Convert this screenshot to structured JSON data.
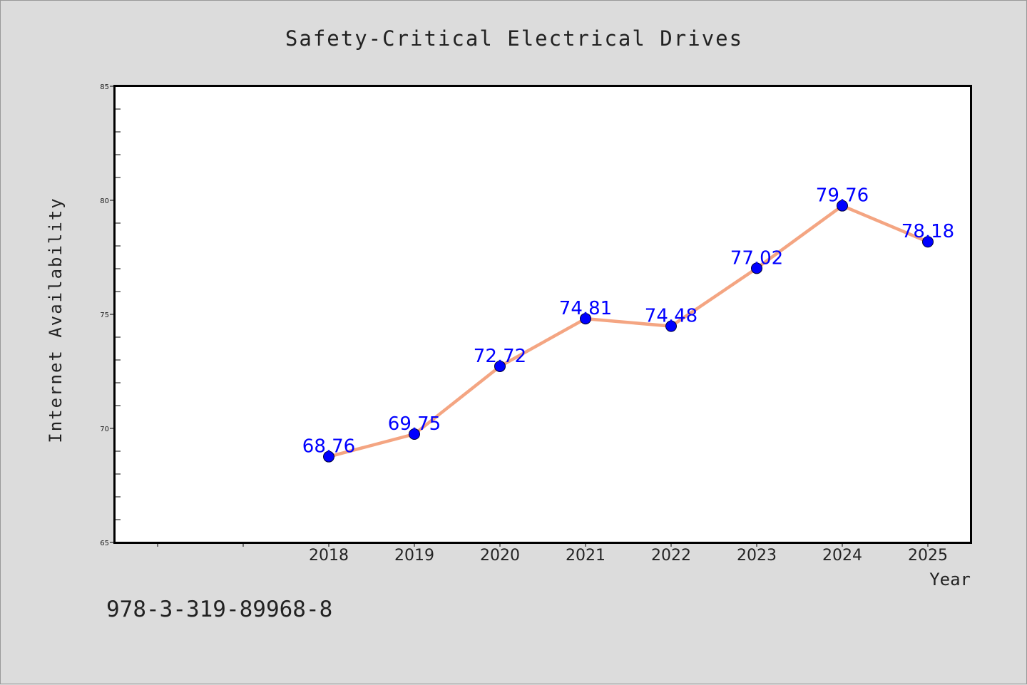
{
  "chart_data": {
    "type": "line",
    "title": "Safety-Critical Electrical Drives",
    "xlabel": "Year",
    "ylabel": "Internet Availability",
    "ylim": [
      65,
      85
    ],
    "yticks": [
      "65",
      "70",
      "75",
      "80",
      "85"
    ],
    "categories": [
      "2018",
      "2019",
      "2020",
      "2021",
      "2022",
      "2023",
      "2024",
      "2025"
    ],
    "series": [
      {
        "values": [
          68.76,
          69.75,
          72.72,
          74.81,
          74.48,
          77.02,
          79.76,
          78.18
        ],
        "labels": [
          "68.76",
          "69.75",
          "72.72",
          "74.81",
          "74.48",
          "77.02",
          "79.76",
          "78.18"
        ]
      }
    ],
    "grid": false,
    "colors": {
      "line": "#f4a582",
      "marker": "#0000ff",
      "data_label": "#0000ff",
      "plot_background": "#ffffff",
      "page_background": "#dcdcdc"
    }
  },
  "footer": {
    "isbn": "978-3-319-89968-8"
  }
}
